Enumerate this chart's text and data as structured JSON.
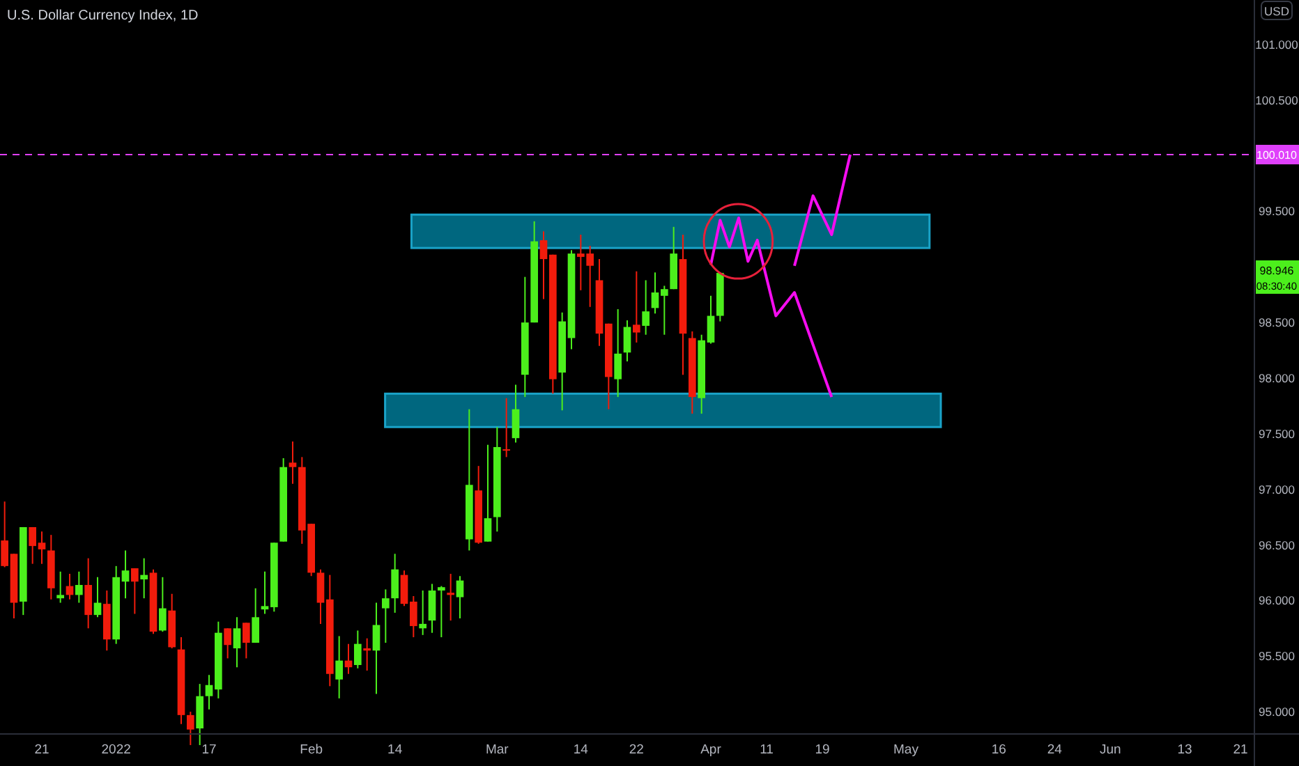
{
  "chart_data": {
    "type": "candlestick",
    "title": "U.S. Dollar Currency Index, 1D",
    "annotations": [
      "98.946",
      "08:30:40",
      "USD"
    ],
    "categories": [
      null,
      null,
      null,
      null,
      "21",
      null,
      null,
      null,
      null,
      null,
      null,
      null,
      "2022",
      null,
      null,
      null,
      null,
      null,
      null,
      null,
      null,
      null,
      "17",
      null,
      null,
      null,
      null,
      null,
      null,
      null,
      null,
      null,
      null,
      "Feb",
      null,
      null,
      null,
      null,
      null,
      null,
      null,
      null,
      "14",
      null,
      null,
      null,
      null,
      null,
      null,
      null,
      null,
      null,
      null,
      "Mar",
      null,
      null,
      null,
      null,
      null,
      null,
      null,
      null,
      "14",
      null,
      null,
      null,
      null,
      null,
      "22",
      null,
      null,
      null,
      null,
      null,
      null,
      null,
      "Apr",
      null,
      null,
      null,
      null,
      null,
      "11",
      null,
      null,
      null,
      null,
      null,
      "19",
      null,
      null,
      null,
      null,
      null,
      null,
      null,
      null,
      "May",
      null,
      null,
      null,
      null,
      null,
      null,
      null,
      null,
      null,
      "16",
      null,
      null,
      null,
      null,
      null,
      "24",
      null,
      null,
      null,
      null,
      null,
      "Jun",
      null,
      null,
      null,
      null,
      null,
      null,
      null,
      "13",
      null,
      null,
      null,
      null,
      null,
      "21",
      null
    ],
    "ylim": [
      94.8,
      101.4
    ],
    "yticks": [
      {
        "value": 95,
        "label": "95.000"
      },
      {
        "value": 95.5,
        "label": "95.500"
      },
      {
        "value": 96,
        "label": "96.000"
      },
      {
        "value": 96.5,
        "label": "96.500"
      },
      {
        "value": 97,
        "label": "97.000"
      },
      {
        "value": 97.5,
        "label": "97.500"
      },
      {
        "value": 98,
        "label": "98.000"
      },
      {
        "value": 98.5,
        "label": "98.500"
      },
      {
        "value": 99.5,
        "label": "99.500"
      },
      {
        "value": 100.5,
        "label": "100.500"
      },
      {
        "value": 101,
        "label": "101.000"
      }
    ],
    "bands": [
      {
        "axis": "y",
        "from": 99.17,
        "to": 99.47,
        "label": null,
        "color": "#00677f"
      },
      {
        "axis": "y",
        "from": 97.56,
        "to": 97.86,
        "label": null,
        "color": "#00677f"
      }
    ],
    "ref_lines": [
      {
        "axis": "y",
        "value": 100.01,
        "label": "100.010",
        "color": "#e040fb",
        "line_style": "dashed"
      }
    ],
    "series": [
      {
        "type": "candlestick",
        "ohlc": [
          [
            96.54,
            96.89,
            96.3,
            96.31
          ],
          [
            96.42,
            96.42,
            95.84,
            95.98
          ],
          [
            95.99,
            96.66,
            95.87,
            96.66
          ],
          [
            96.66,
            96.66,
            96.33,
            96.49
          ],
          [
            96.52,
            96.62,
            96.33,
            96.46
          ],
          [
            96.45,
            96.59,
            96.01,
            96.11
          ],
          [
            96.02,
            96.26,
            95.98,
            96.05
          ],
          [
            96.13,
            96.24,
            96.01,
            96.05
          ],
          [
            96.05,
            96.26,
            95.98,
            96.14
          ],
          [
            96.14,
            96.38,
            95.75,
            95.87
          ],
          [
            95.87,
            96.21,
            95.85,
            95.98
          ],
          [
            95.97,
            96.09,
            95.55,
            95.65
          ],
          [
            95.65,
            96.31,
            95.61,
            96.21
          ],
          [
            96.17,
            96.45,
            96.02,
            96.27
          ],
          [
            96.29,
            96.29,
            95.88,
            96.17
          ],
          [
            96.19,
            96.38,
            96.02,
            96.23
          ],
          [
            96.25,
            96.28,
            95.7,
            95.72
          ],
          [
            95.73,
            96.21,
            95.72,
            95.93
          ],
          [
            95.91,
            96.06,
            95.57,
            95.58
          ],
          [
            95.56,
            95.67,
            94.89,
            94.97
          ],
          [
            94.97,
            95.0,
            94.7,
            94.84
          ],
          [
            94.85,
            95.25,
            94.7,
            95.14
          ],
          [
            95.14,
            95.33,
            95.02,
            95.24
          ],
          [
            95.2,
            95.81,
            95.12,
            95.71
          ],
          [
            95.75,
            95.75,
            95.48,
            95.6
          ],
          [
            95.57,
            95.85,
            95.4,
            95.75
          ],
          [
            95.8,
            95.8,
            95.48,
            95.62
          ],
          [
            95.62,
            96.11,
            95.62,
            95.85
          ],
          [
            95.92,
            96.26,
            95.88,
            95.95
          ],
          [
            95.94,
            96.52,
            95.9,
            96.52
          ],
          [
            96.53,
            97.28,
            96.53,
            97.2
          ],
          [
            97.24,
            97.43,
            97.05,
            97.2
          ],
          [
            97.2,
            97.29,
            96.51,
            96.63
          ],
          [
            96.69,
            96.69,
            96.22,
            96.25
          ],
          [
            96.25,
            96.28,
            95.79,
            95.98
          ],
          [
            96.01,
            96.23,
            95.23,
            95.34
          ],
          [
            95.29,
            95.68,
            95.12,
            95.46
          ],
          [
            95.46,
            95.61,
            95.34,
            95.4
          ],
          [
            95.42,
            95.73,
            95.39,
            95.61
          ],
          [
            95.57,
            95.66,
            95.37,
            95.55
          ],
          [
            95.55,
            95.98,
            95.16,
            95.78
          ],
          [
            95.93,
            96.1,
            95.62,
            96.02
          ],
          [
            96.02,
            96.42,
            95.89,
            96.28
          ],
          [
            96.23,
            96.27,
            95.95,
            95.97
          ],
          [
            95.99,
            96.04,
            95.67,
            95.77
          ],
          [
            95.75,
            96.09,
            95.69,
            95.79
          ],
          [
            95.82,
            96.15,
            95.71,
            96.09
          ],
          [
            96.09,
            96.13,
            95.67,
            96.12
          ],
          [
            96.07,
            96.24,
            95.82,
            96.05
          ],
          [
            96.03,
            96.22,
            95.84,
            96.18
          ],
          [
            96.55,
            97.72,
            96.45,
            97.04
          ],
          [
            96.99,
            97.21,
            96.51,
            96.52
          ],
          [
            96.53,
            97.4,
            96.53,
            96.74
          ],
          [
            96.75,
            97.56,
            96.62,
            97.38
          ],
          [
            97.36,
            97.82,
            97.29,
            97.35
          ],
          [
            97.46,
            97.94,
            97.42,
            97.72
          ],
          [
            98.03,
            98.91,
            97.83,
            98.5
          ],
          [
            98.5,
            99.41,
            98.5,
            99.23
          ],
          [
            99.24,
            99.32,
            98.71,
            99.07
          ],
          [
            99.11,
            99.11,
            97.86,
            97.99
          ],
          [
            98.05,
            98.59,
            97.71,
            98.51
          ],
          [
            98.36,
            99.15,
            98.26,
            99.12
          ],
          [
            99.12,
            99.29,
            98.79,
            99.09
          ],
          [
            99.12,
            99.19,
            98.64,
            99.01
          ],
          [
            98.88,
            99.07,
            98.29,
            98.4
          ],
          [
            98.49,
            98.49,
            97.72,
            98.01
          ],
          [
            97.99,
            98.62,
            97.83,
            98.22
          ],
          [
            98.23,
            98.52,
            98.15,
            98.46
          ],
          [
            98.48,
            98.96,
            98.32,
            98.41
          ],
          [
            98.47,
            98.88,
            98.39,
            98.6
          ],
          [
            98.63,
            98.95,
            98.58,
            98.77
          ],
          [
            98.74,
            98.83,
            98.39,
            98.8
          ],
          [
            98.8,
            99.36,
            98.8,
            99.12
          ],
          [
            99.07,
            99.29,
            98.03,
            98.4
          ],
          [
            98.36,
            98.42,
            97.68,
            97.83
          ],
          [
            97.82,
            98.39,
            97.68,
            98.34
          ],
          [
            98.32,
            98.74,
            98.31,
            98.56
          ],
          [
            98.56,
            98.95,
            98.51,
            98.946
          ],
          null,
          null,
          null,
          null,
          null,
          null,
          null,
          null,
          null,
          null,
          null,
          null,
          null,
          null,
          null,
          null,
          null,
          null,
          null,
          null,
          null,
          null,
          null,
          null,
          null,
          null,
          null,
          null,
          null,
          null,
          null,
          null,
          null,
          null,
          null,
          null,
          null,
          null,
          null,
          null,
          null,
          null,
          null,
          null,
          null,
          null,
          null,
          null,
          null,
          null,
          null,
          null,
          null,
          null,
          null,
          null,
          null
        ],
        "colors": [
          "#f21c0c",
          "#f21c0c",
          "#4cef1c",
          "#f21c0c",
          "#f21c0c",
          "#f21c0c",
          "#4cef1c",
          "#f21c0c",
          "#4cef1c",
          "#f21c0c",
          "#4cef1c",
          "#f21c0c",
          "#4cef1c",
          "#4cef1c",
          "#f21c0c",
          "#4cef1c",
          "#f21c0c",
          "#4cef1c",
          "#f21c0c",
          "#f21c0c",
          "#f21c0c",
          "#4cef1c",
          "#4cef1c",
          "#4cef1c",
          "#f21c0c",
          "#4cef1c",
          "#f21c0c",
          "#4cef1c",
          "#4cef1c",
          "#4cef1c",
          "#4cef1c",
          "#f21c0c",
          "#f21c0c",
          "#f21c0c",
          "#f21c0c",
          "#f21c0c",
          "#4cef1c",
          "#f21c0c",
          "#4cef1c",
          "#f21c0c",
          "#4cef1c",
          "#4cef1c",
          "#4cef1c",
          "#f21c0c",
          "#f21c0c",
          "#4cef1c",
          "#4cef1c",
          "#4cef1c",
          "#f21c0c",
          "#4cef1c",
          "#4cef1c",
          "#f21c0c",
          "#4cef1c",
          "#4cef1c",
          "#f21c0c",
          "#4cef1c",
          "#4cef1c",
          "#4cef1c",
          "#f21c0c",
          "#f21c0c",
          "#4cef1c",
          "#4cef1c",
          "#f21c0c",
          "#f21c0c",
          "#f21c0c",
          "#f21c0c",
          "#4cef1c",
          "#4cef1c",
          "#f21c0c",
          "#4cef1c",
          "#4cef1c",
          "#4cef1c",
          "#4cef1c",
          "#f21c0c",
          "#f21c0c",
          "#4cef1c",
          "#4cef1c",
          "#4cef1c",
          null,
          null,
          null,
          null,
          null,
          null,
          null,
          null,
          null,
          null,
          null,
          null,
          null,
          null,
          null,
          null,
          null,
          null,
          null,
          null,
          null,
          null,
          null,
          null,
          null,
          null,
          null,
          null,
          null,
          null,
          null,
          null,
          null,
          null,
          null,
          null,
          null,
          null,
          null,
          null,
          null,
          null,
          null,
          null,
          null,
          null,
          null,
          null,
          null,
          null,
          null,
          null,
          null,
          null,
          null,
          null,
          null
        ]
      },
      {
        "type": "line",
        "color": "#f50cf0",
        "values": [
          null,
          null,
          null,
          null,
          null,
          null,
          null,
          null,
          null,
          null,
          null,
          null,
          null,
          null,
          null,
          null,
          null,
          null,
          null,
          null,
          null,
          null,
          null,
          null,
          null,
          null,
          null,
          null,
          null,
          null,
          null,
          null,
          null,
          null,
          null,
          null,
          null,
          null,
          null,
          null,
          null,
          null,
          null,
          null,
          null,
          null,
          null,
          null,
          null,
          null,
          null,
          null,
          null,
          null,
          null,
          null,
          null,
          null,
          null,
          null,
          null,
          null,
          null,
          null,
          null,
          null,
          null,
          null,
          null,
          null,
          null,
          null,
          null,
          null,
          null,
          null,
          99.02,
          99.42,
          99.18,
          99.44,
          99.05,
          99.24,
          null,
          98.56,
          null,
          98.77,
          null,
          null,
          null,
          97.83,
          null,
          null,
          null,
          null,
          null,
          null,
          null,
          null,
          null,
          null,
          null,
          null,
          null,
          null,
          null,
          null,
          null,
          null,
          null,
          null,
          null,
          null,
          null,
          null,
          null,
          null,
          null,
          null,
          null,
          null,
          null,
          null,
          null,
          null,
          null,
          null,
          null,
          null,
          null,
          null,
          null,
          null,
          null,
          null,
          null
        ]
      },
      {
        "type": "line",
        "color": "#f50cf0",
        "values": [
          null,
          null,
          null,
          null,
          null,
          null,
          null,
          null,
          null,
          null,
          null,
          null,
          null,
          null,
          null,
          null,
          null,
          null,
          null,
          null,
          null,
          null,
          null,
          null,
          null,
          null,
          null,
          null,
          null,
          null,
          null,
          null,
          null,
          null,
          null,
          null,
          null,
          null,
          null,
          null,
          null,
          null,
          null,
          null,
          null,
          null,
          null,
          null,
          null,
          null,
          null,
          null,
          null,
          null,
          null,
          null,
          null,
          null,
          null,
          null,
          null,
          null,
          null,
          null,
          null,
          null,
          null,
          null,
          null,
          null,
          null,
          null,
          null,
          null,
          null,
          null,
          null,
          null,
          null,
          null,
          null,
          null,
          null,
          null,
          null,
          99.01,
          null,
          99.64,
          null,
          99.29,
          null,
          100.01,
          null,
          null,
          null,
          null,
          null,
          null,
          null,
          null,
          null,
          null,
          null,
          null,
          null,
          null,
          null,
          null,
          null,
          null,
          null,
          null,
          null,
          null,
          null,
          null,
          null,
          null,
          null,
          null,
          null,
          null,
          null,
          null,
          null,
          null,
          null,
          null,
          null,
          null,
          null,
          null,
          null,
          null,
          null
        ]
      }
    ]
  }
}
